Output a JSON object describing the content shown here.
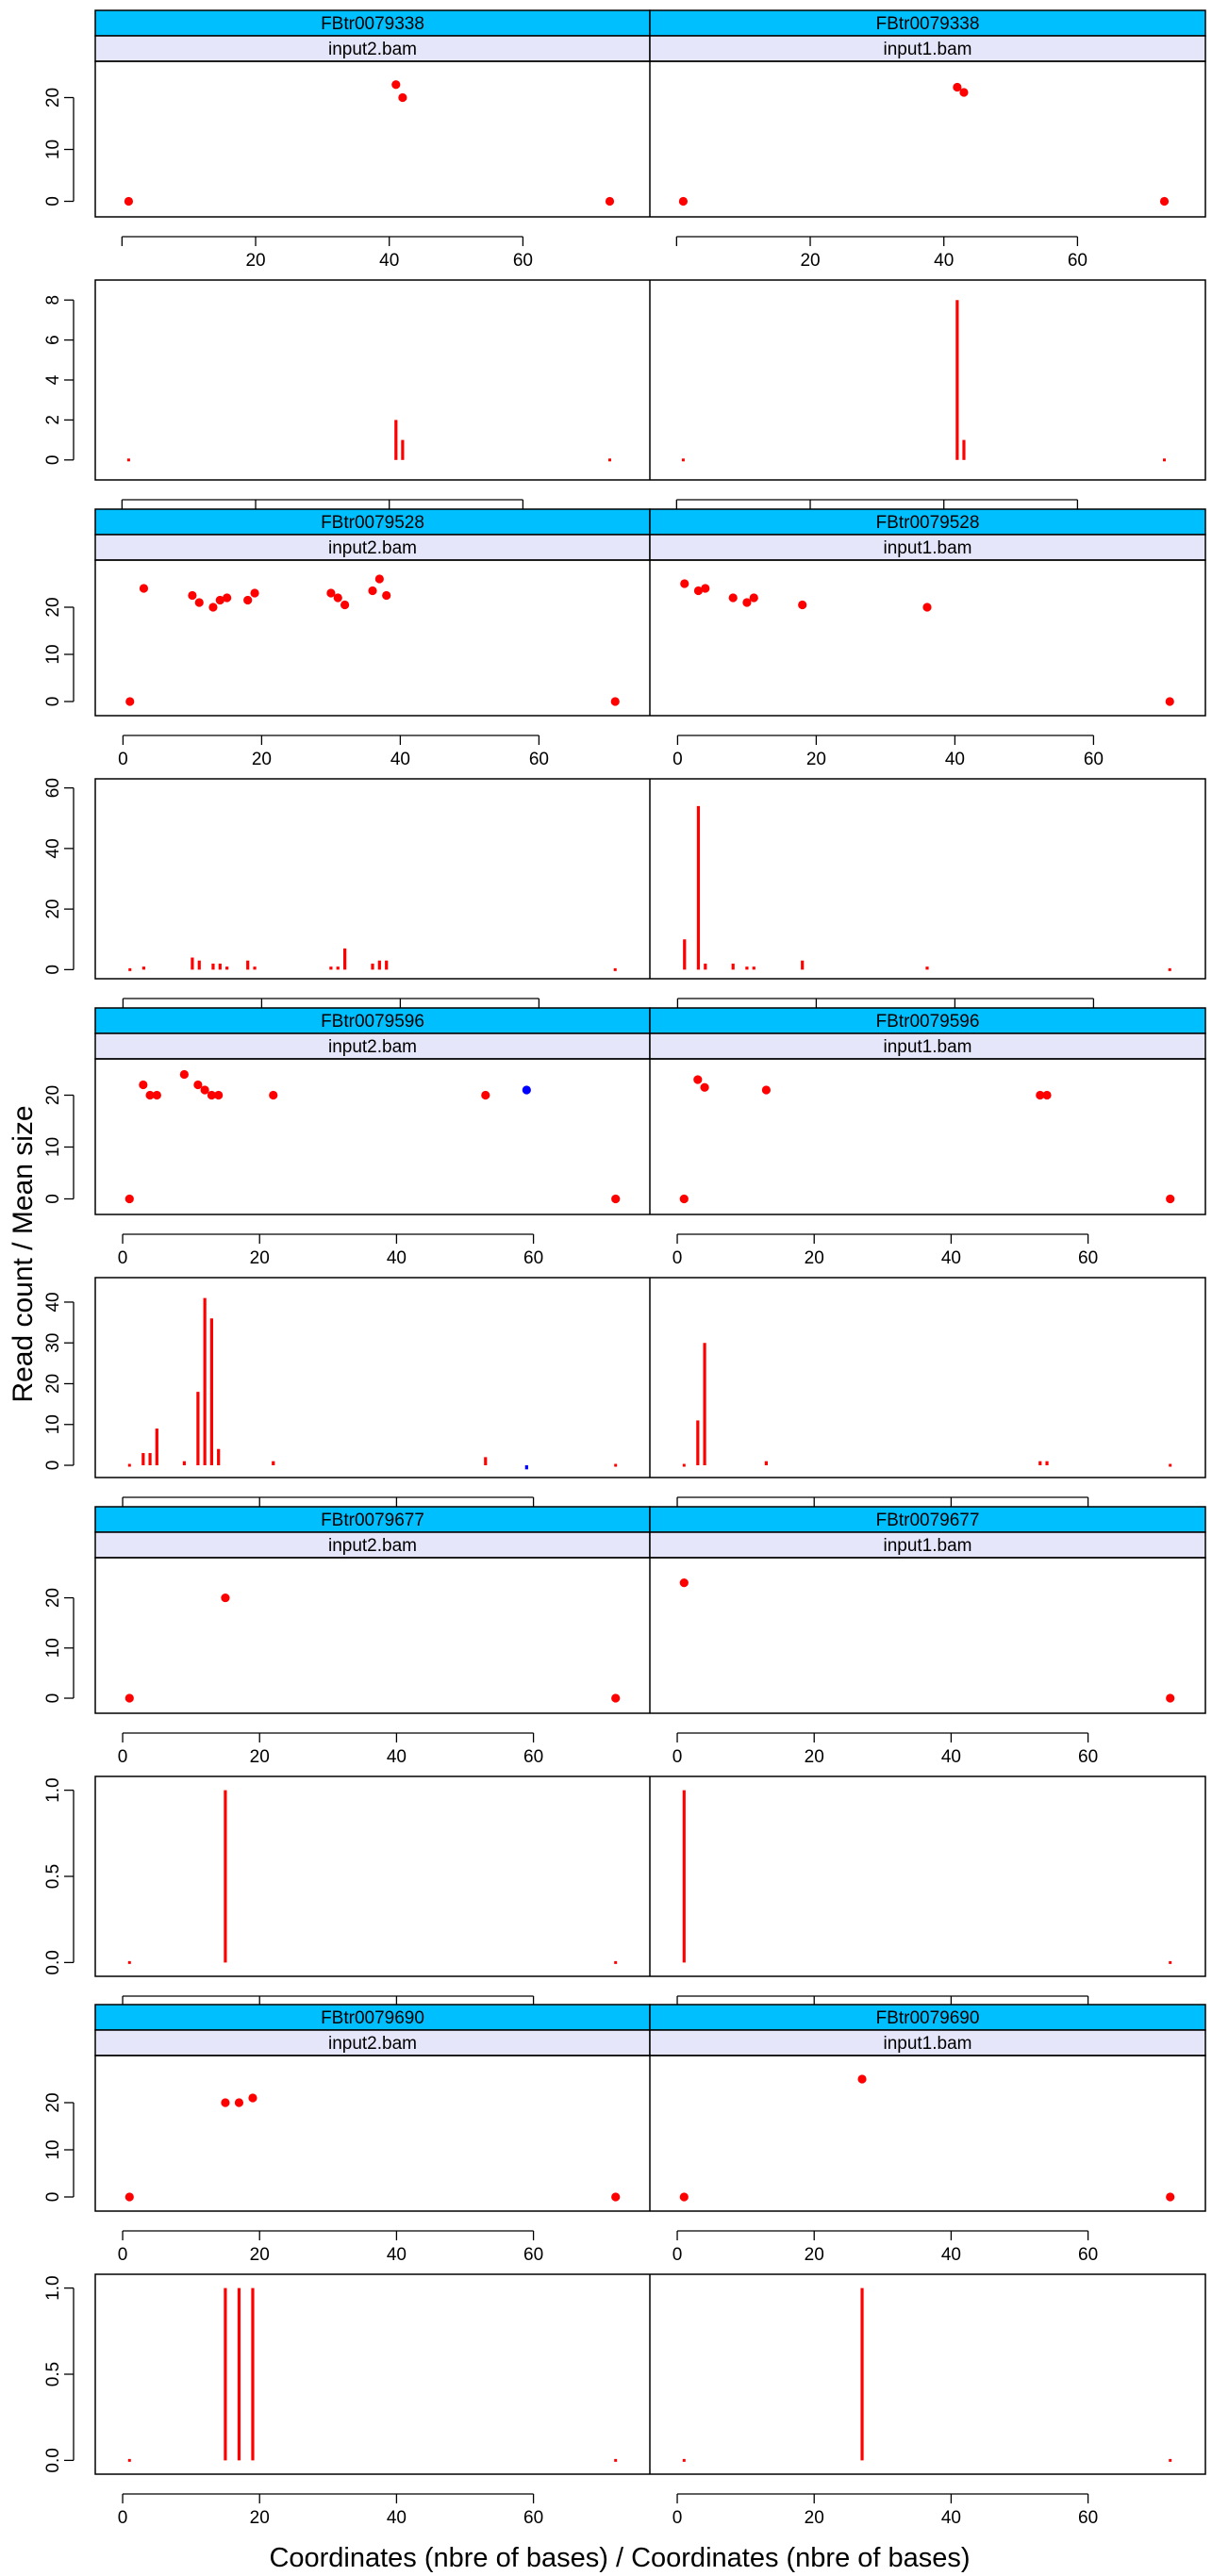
{
  "figure": {
    "ylabel": "Read count / Mean size",
    "xlabel": "Coordinates (nbre of bases) / Coordinates (nbre of bases)",
    "colors": {
      "strip_top": "#00BFFF",
      "strip_bottom": "#E6E6FA",
      "point_main": "#FF0000",
      "point_alt": "#0000FF"
    }
  },
  "chart_data": [
    {
      "type": "scatter+bar",
      "transcript": "FBtr0079338",
      "xlim": [
        -4,
        79
      ],
      "xticks": [
        20,
        40,
        60
      ],
      "panels": [
        {
          "file": "input2.bam",
          "size_ylim": [
            -3,
            27
          ],
          "size_yticks": [
            0,
            10,
            20
          ],
          "size_points": [
            {
              "x": 1,
              "y": 0
            },
            {
              "x": 41,
              "y": 22.5
            },
            {
              "x": 42,
              "y": 20
            },
            {
              "x": 73,
              "y": 0
            }
          ],
          "count_ylim": [
            -1,
            9
          ],
          "count_yticks": [
            0,
            2,
            4,
            6,
            8
          ],
          "count_bars": [
            {
              "x": 1,
              "y": 0
            },
            {
              "x": 41,
              "y": 2
            },
            {
              "x": 42,
              "y": 1
            },
            {
              "x": 73,
              "y": 0
            }
          ]
        },
        {
          "file": "input1.bam",
          "size_ylim": [
            -3,
            27
          ],
          "size_yticks": [
            0,
            10,
            20
          ],
          "size_points": [
            {
              "x": 1,
              "y": 0
            },
            {
              "x": 42,
              "y": 22
            },
            {
              "x": 43,
              "y": 21
            },
            {
              "x": 73,
              "y": 0
            }
          ],
          "count_ylim": [
            -1,
            9
          ],
          "count_yticks": [
            0,
            2,
            4,
            6,
            8
          ],
          "count_bars": [
            {
              "x": 1,
              "y": 0
            },
            {
              "x": 42,
              "y": 8
            },
            {
              "x": 43,
              "y": 1
            },
            {
              "x": 73,
              "y": 0
            }
          ]
        }
      ]
    },
    {
      "type": "scatter+bar",
      "transcript": "FBtr0079528",
      "xlim": [
        -4,
        76
      ],
      "xticks": [
        0,
        20,
        40,
        60
      ],
      "panels": [
        {
          "file": "input2.bam",
          "size_ylim": [
            -3,
            30
          ],
          "size_yticks": [
            0,
            10,
            20
          ],
          "size_points": [
            {
              "x": 1,
              "y": 0
            },
            {
              "x": 3,
              "y": 24
            },
            {
              "x": 10,
              "y": 22.5
            },
            {
              "x": 11,
              "y": 21
            },
            {
              "x": 13,
              "y": 20
            },
            {
              "x": 14,
              "y": 21.5
            },
            {
              "x": 15,
              "y": 22
            },
            {
              "x": 18,
              "y": 21.5
            },
            {
              "x": 19,
              "y": 23
            },
            {
              "x": 30,
              "y": 23
            },
            {
              "x": 31,
              "y": 22
            },
            {
              "x": 32,
              "y": 20.5
            },
            {
              "x": 36,
              "y": 23.5
            },
            {
              "x": 37,
              "y": 26
            },
            {
              "x": 38,
              "y": 22.5
            },
            {
              "x": 71,
              "y": 0
            }
          ],
          "count_ylim": [
            -3,
            63
          ],
          "count_yticks": [
            0,
            20,
            40,
            60
          ],
          "count_bars": [
            {
              "x": 1,
              "y": 0
            },
            {
              "x": 3,
              "y": 1
            },
            {
              "x": 10,
              "y": 4
            },
            {
              "x": 11,
              "y": 3
            },
            {
              "x": 13,
              "y": 2
            },
            {
              "x": 14,
              "y": 2
            },
            {
              "x": 15,
              "y": 1
            },
            {
              "x": 18,
              "y": 3
            },
            {
              "x": 19,
              "y": 1
            },
            {
              "x": 30,
              "y": 1
            },
            {
              "x": 31,
              "y": 1
            },
            {
              "x": 32,
              "y": 7
            },
            {
              "x": 36,
              "y": 2
            },
            {
              "x": 37,
              "y": 3
            },
            {
              "x": 38,
              "y": 3
            },
            {
              "x": 71,
              "y": 0
            }
          ]
        },
        {
          "file": "input1.bam",
          "size_ylim": [
            -3,
            30
          ],
          "size_yticks": [
            0,
            10,
            20
          ],
          "size_points": [
            {
              "x": 1,
              "y": 25
            },
            {
              "x": 3,
              "y": 23.5
            },
            {
              "x": 4,
              "y": 24
            },
            {
              "x": 8,
              "y": 22
            },
            {
              "x": 10,
              "y": 21
            },
            {
              "x": 11,
              "y": 22
            },
            {
              "x": 18,
              "y": 20.5
            },
            {
              "x": 36,
              "y": 20
            },
            {
              "x": 71,
              "y": 0
            }
          ],
          "count_ylim": [
            -3,
            63
          ],
          "count_yticks": [
            0,
            20,
            40,
            60
          ],
          "count_bars": [
            {
              "x": 1,
              "y": 10
            },
            {
              "x": 3,
              "y": 54
            },
            {
              "x": 4,
              "y": 2
            },
            {
              "x": 8,
              "y": 2
            },
            {
              "x": 10,
              "y": 1
            },
            {
              "x": 11,
              "y": 1
            },
            {
              "x": 18,
              "y": 3
            },
            {
              "x": 36,
              "y": 1
            },
            {
              "x": 71,
              "y": 0
            }
          ]
        }
      ]
    },
    {
      "type": "scatter+bar",
      "transcript": "FBtr0079596",
      "xlim": [
        -4,
        77
      ],
      "xticks": [
        0,
        20,
        40,
        60
      ],
      "panels": [
        {
          "file": "input2.bam",
          "size_ylim": [
            -3,
            27
          ],
          "size_yticks": [
            0,
            10,
            20
          ],
          "size_points": [
            {
              "x": 1,
              "y": 0
            },
            {
              "x": 3,
              "y": 22
            },
            {
              "x": 4,
              "y": 20
            },
            {
              "x": 5,
              "y": 20
            },
            {
              "x": 9,
              "y": 24
            },
            {
              "x": 11,
              "y": 22
            },
            {
              "x": 12,
              "y": 21
            },
            {
              "x": 13,
              "y": 20
            },
            {
              "x": 14,
              "y": 20
            },
            {
              "x": 22,
              "y": 20
            },
            {
              "x": 53,
              "y": 20
            },
            {
              "x": 59,
              "y": 21,
              "alt": true
            },
            {
              "x": 72,
              "y": 0
            }
          ],
          "count_ylim": [
            -3,
            46
          ],
          "count_yticks": [
            0,
            10,
            20,
            30,
            40
          ],
          "count_bars": [
            {
              "x": 1,
              "y": 0
            },
            {
              "x": 3,
              "y": 3
            },
            {
              "x": 4,
              "y": 3
            },
            {
              "x": 5,
              "y": 9
            },
            {
              "x": 9,
              "y": 1
            },
            {
              "x": 11,
              "y": 18
            },
            {
              "x": 12,
              "y": 41
            },
            {
              "x": 13,
              "y": 36
            },
            {
              "x": 14,
              "y": 4
            },
            {
              "x": 22,
              "y": 1
            },
            {
              "x": 53,
              "y": 2
            },
            {
              "x": 59,
              "y": -1,
              "alt": true
            },
            {
              "x": 72,
              "y": 0
            }
          ]
        },
        {
          "file": "input1.bam",
          "size_ylim": [
            -3,
            27
          ],
          "size_yticks": [
            0,
            10,
            20
          ],
          "size_points": [
            {
              "x": 1,
              "y": 0
            },
            {
              "x": 3,
              "y": 23
            },
            {
              "x": 4,
              "y": 21.5
            },
            {
              "x": 13,
              "y": 21
            },
            {
              "x": 53,
              "y": 20
            },
            {
              "x": 54,
              "y": 20
            },
            {
              "x": 72,
              "y": 0
            }
          ],
          "count_ylim": [
            -3,
            46
          ],
          "count_yticks": [
            0,
            10,
            20,
            30,
            40
          ],
          "count_bars": [
            {
              "x": 1,
              "y": 0
            },
            {
              "x": 3,
              "y": 11
            },
            {
              "x": 4,
              "y": 30
            },
            {
              "x": 13,
              "y": 1
            },
            {
              "x": 53,
              "y": 1
            },
            {
              "x": 54,
              "y": 1
            },
            {
              "x": 72,
              "y": 0
            }
          ]
        }
      ]
    },
    {
      "type": "scatter+bar",
      "transcript": "FBtr0079677",
      "xlim": [
        -4,
        77
      ],
      "xticks": [
        0,
        20,
        40,
        60
      ],
      "panels": [
        {
          "file": "input2.bam",
          "size_ylim": [
            -3,
            28
          ],
          "size_yticks": [
            0,
            10,
            20
          ],
          "size_points": [
            {
              "x": 1,
              "y": 0
            },
            {
              "x": 15,
              "y": 20
            },
            {
              "x": 72,
              "y": 0
            }
          ],
          "count_ylim": [
            -0.08,
            1.08
          ],
          "count_yticks": [
            0.0,
            0.5,
            1.0
          ],
          "count_bars": [
            {
              "x": 1,
              "y": 0
            },
            {
              "x": 15,
              "y": 1
            },
            {
              "x": 72,
              "y": 0
            }
          ]
        },
        {
          "file": "input1.bam",
          "size_ylim": [
            -3,
            28
          ],
          "size_yticks": [
            0,
            10,
            20
          ],
          "size_points": [
            {
              "x": 1,
              "y": 23
            },
            {
              "x": 72,
              "y": 0
            }
          ],
          "count_ylim": [
            -0.08,
            1.08
          ],
          "count_yticks": [
            0.0,
            0.5,
            1.0
          ],
          "count_bars": [
            {
              "x": 1,
              "y": 1
            },
            {
              "x": 72,
              "y": 0
            }
          ]
        }
      ]
    },
    {
      "type": "scatter+bar",
      "transcript": "FBtr0079690",
      "xlim": [
        -4,
        77
      ],
      "xticks": [
        0,
        20,
        40,
        60
      ],
      "panels": [
        {
          "file": "input2.bam",
          "size_ylim": [
            -3,
            30
          ],
          "size_yticks": [
            0,
            10,
            20
          ],
          "size_points": [
            {
              "x": 1,
              "y": 0
            },
            {
              "x": 15,
              "y": 20
            },
            {
              "x": 17,
              "y": 20
            },
            {
              "x": 19,
              "y": 21
            },
            {
              "x": 72,
              "y": 0
            }
          ],
          "count_ylim": [
            -0.08,
            1.08
          ],
          "count_yticks": [
            0.0,
            0.5,
            1.0
          ],
          "count_bars": [
            {
              "x": 1,
              "y": 0
            },
            {
              "x": 15,
              "y": 1
            },
            {
              "x": 17,
              "y": 1
            },
            {
              "x": 19,
              "y": 1
            },
            {
              "x": 72,
              "y": 0
            }
          ]
        },
        {
          "file": "input1.bam",
          "size_ylim": [
            -3,
            30
          ],
          "size_yticks": [
            0,
            10,
            20
          ],
          "size_points": [
            {
              "x": 1,
              "y": 0
            },
            {
              "x": 27,
              "y": 25
            },
            {
              "x": 72,
              "y": 0
            }
          ],
          "count_ylim": [
            -0.08,
            1.08
          ],
          "count_yticks": [
            0.0,
            0.5,
            1.0
          ],
          "count_bars": [
            {
              "x": 1,
              "y": 0
            },
            {
              "x": 27,
              "y": 1
            },
            {
              "x": 72,
              "y": 0
            }
          ]
        }
      ]
    }
  ]
}
